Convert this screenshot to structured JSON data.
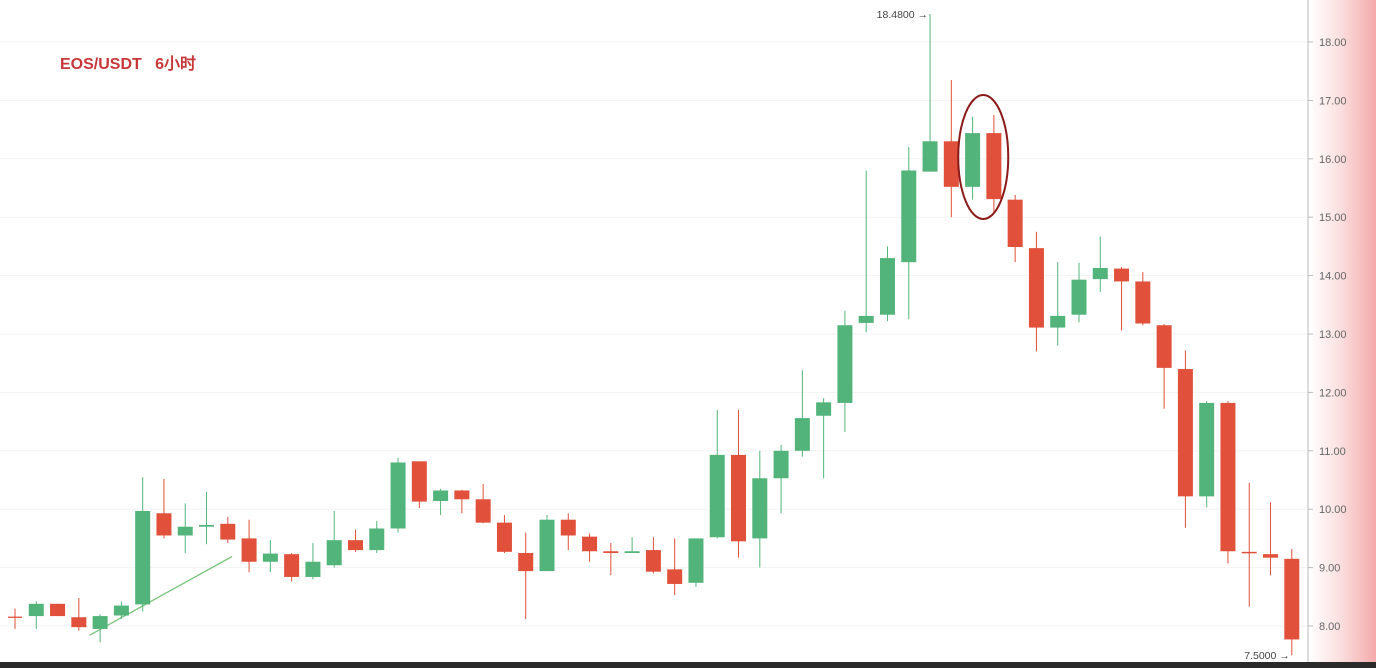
{
  "title": "EOS/USDT   6小时",
  "chart_data": {
    "type": "candlestick",
    "title": "EOS/USDT   6小时",
    "symbol": "EOS/USDT",
    "interval": "6小时",
    "ylim": [
      7.3,
      18.7
    ],
    "yticks": [
      "8.00",
      "9.00",
      "10.00",
      "11.00",
      "12.00",
      "13.00",
      "14.00",
      "15.00",
      "16.00",
      "17.00",
      "18.00"
    ],
    "grid": true,
    "colors": {
      "up": "#52b47a",
      "down": "#e0503a",
      "highlight": "#8b1a1a",
      "title": "#c8373a"
    },
    "max_label": "18.4800 →",
    "min_label": "7.5000 →",
    "candles": [
      {
        "o": 8.15,
        "h": 8.3,
        "l": 7.95,
        "c": 8.15
      },
      {
        "o": 8.17,
        "h": 8.42,
        "l": 7.95,
        "c": 8.38
      },
      {
        "o": 8.38,
        "h": 8.38,
        "l": 8.17,
        "c": 8.17
      },
      {
        "o": 8.15,
        "h": 8.48,
        "l": 7.92,
        "c": 7.98
      },
      {
        "o": 7.95,
        "h": 8.2,
        "l": 7.72,
        "c": 8.17
      },
      {
        "o": 8.18,
        "h": 8.42,
        "l": 8.12,
        "c": 8.35
      },
      {
        "o": 8.37,
        "h": 10.55,
        "l": 8.25,
        "c": 9.97
      },
      {
        "o": 9.93,
        "h": 10.52,
        "l": 9.5,
        "c": 9.55
      },
      {
        "o": 9.55,
        "h": 10.1,
        "l": 9.25,
        "c": 9.7
      },
      {
        "o": 9.7,
        "h": 10.3,
        "l": 9.4,
        "c": 9.73
      },
      {
        "o": 9.75,
        "h": 9.87,
        "l": 9.42,
        "c": 9.48
      },
      {
        "o": 9.5,
        "h": 9.82,
        "l": 8.92,
        "c": 9.1
      },
      {
        "o": 9.1,
        "h": 9.47,
        "l": 8.92,
        "c": 9.24
      },
      {
        "o": 9.23,
        "h": 9.25,
        "l": 8.76,
        "c": 8.84
      },
      {
        "o": 8.84,
        "h": 9.42,
        "l": 8.8,
        "c": 9.1
      },
      {
        "o": 9.04,
        "h": 9.97,
        "l": 9.0,
        "c": 9.47
      },
      {
        "o": 9.47,
        "h": 9.65,
        "l": 9.27,
        "c": 9.3
      },
      {
        "o": 9.3,
        "h": 9.8,
        "l": 9.25,
        "c": 9.67
      },
      {
        "o": 9.67,
        "h": 10.88,
        "l": 9.6,
        "c": 10.8
      },
      {
        "o": 10.82,
        "h": 10.82,
        "l": 10.02,
        "c": 10.13
      },
      {
        "o": 10.14,
        "h": 10.35,
        "l": 9.9,
        "c": 10.32
      },
      {
        "o": 10.32,
        "h": 10.33,
        "l": 9.93,
        "c": 10.17
      },
      {
        "o": 10.17,
        "h": 10.43,
        "l": 9.76,
        "c": 9.77
      },
      {
        "o": 9.77,
        "h": 9.9,
        "l": 9.25,
        "c": 9.27
      },
      {
        "o": 9.25,
        "h": 9.6,
        "l": 8.12,
        "c": 8.94
      },
      {
        "o": 8.94,
        "h": 9.9,
        "l": 8.94,
        "c": 9.82
      },
      {
        "o": 9.82,
        "h": 9.93,
        "l": 9.3,
        "c": 9.55
      },
      {
        "o": 9.53,
        "h": 9.58,
        "l": 9.1,
        "c": 9.28
      },
      {
        "o": 9.28,
        "h": 9.42,
        "l": 8.87,
        "c": 9.25
      },
      {
        "o": 9.25,
        "h": 9.52,
        "l": 9.25,
        "c": 9.28
      },
      {
        "o": 9.3,
        "h": 9.52,
        "l": 8.9,
        "c": 8.93
      },
      {
        "o": 8.97,
        "h": 9.5,
        "l": 8.53,
        "c": 8.72
      },
      {
        "o": 8.74,
        "h": 9.5,
        "l": 8.67,
        "c": 9.5
      },
      {
        "o": 9.52,
        "h": 11.7,
        "l": 9.5,
        "c": 10.93
      },
      {
        "o": 10.93,
        "h": 11.7,
        "l": 9.17,
        "c": 9.45
      },
      {
        "o": 9.5,
        "h": 11.0,
        "l": 9.0,
        "c": 10.53
      },
      {
        "o": 10.53,
        "h": 11.1,
        "l": 9.93,
        "c": 11.0
      },
      {
        "o": 11.0,
        "h": 12.38,
        "l": 10.9,
        "c": 11.56
      },
      {
        "o": 11.6,
        "h": 11.9,
        "l": 10.53,
        "c": 11.83
      },
      {
        "o": 11.82,
        "h": 13.4,
        "l": 11.32,
        "c": 13.15
      },
      {
        "o": 13.19,
        "h": 15.8,
        "l": 13.03,
        "c": 13.31
      },
      {
        "o": 13.33,
        "h": 14.5,
        "l": 13.22,
        "c": 14.3
      },
      {
        "o": 14.23,
        "h": 16.2,
        "l": 13.25,
        "c": 15.8
      },
      {
        "o": 15.78,
        "h": 18.48,
        "l": 15.78,
        "c": 16.3
      },
      {
        "o": 16.3,
        "h": 17.35,
        "l": 15.0,
        "c": 15.52
      },
      {
        "o": 15.52,
        "h": 16.72,
        "l": 15.3,
        "c": 16.44
      },
      {
        "o": 16.44,
        "h": 16.75,
        "l": 15.07,
        "c": 15.31
      },
      {
        "o": 15.3,
        "h": 15.38,
        "l": 14.23,
        "c": 14.49
      },
      {
        "o": 14.47,
        "h": 14.75,
        "l": 12.7,
        "c": 13.11
      },
      {
        "o": 13.11,
        "h": 14.23,
        "l": 12.8,
        "c": 13.31
      },
      {
        "o": 13.33,
        "h": 14.22,
        "l": 13.2,
        "c": 13.93
      },
      {
        "o": 13.94,
        "h": 14.67,
        "l": 13.72,
        "c": 14.13
      },
      {
        "o": 14.12,
        "h": 14.15,
        "l": 13.06,
        "c": 13.9
      },
      {
        "o": 13.9,
        "h": 14.06,
        "l": 13.15,
        "c": 13.18
      },
      {
        "o": 13.15,
        "h": 13.17,
        "l": 11.72,
        "c": 12.42
      },
      {
        "o": 12.4,
        "h": 12.72,
        "l": 9.68,
        "c": 10.22
      },
      {
        "o": 10.22,
        "h": 11.85,
        "l": 10.03,
        "c": 11.82
      },
      {
        "o": 11.82,
        "h": 11.85,
        "l": 9.07,
        "c": 9.28
      },
      {
        "o": 9.27,
        "h": 10.45,
        "l": 8.33,
        "c": 9.25
      },
      {
        "o": 9.23,
        "h": 10.12,
        "l": 8.87,
        "c": 9.17
      },
      {
        "o": 9.15,
        "h": 9.32,
        "l": 7.5,
        "c": 7.77
      }
    ],
    "doji_colors": {
      "0": "down",
      "9": "up",
      "28": "down",
      "29": "up",
      "58": "down"
    },
    "highlight_candles": [
      45,
      46
    ],
    "trendline": {
      "from": {
        "index": 3.5,
        "price": 7.84
      },
      "to": {
        "index": 10.2,
        "price": 9.19
      }
    }
  }
}
